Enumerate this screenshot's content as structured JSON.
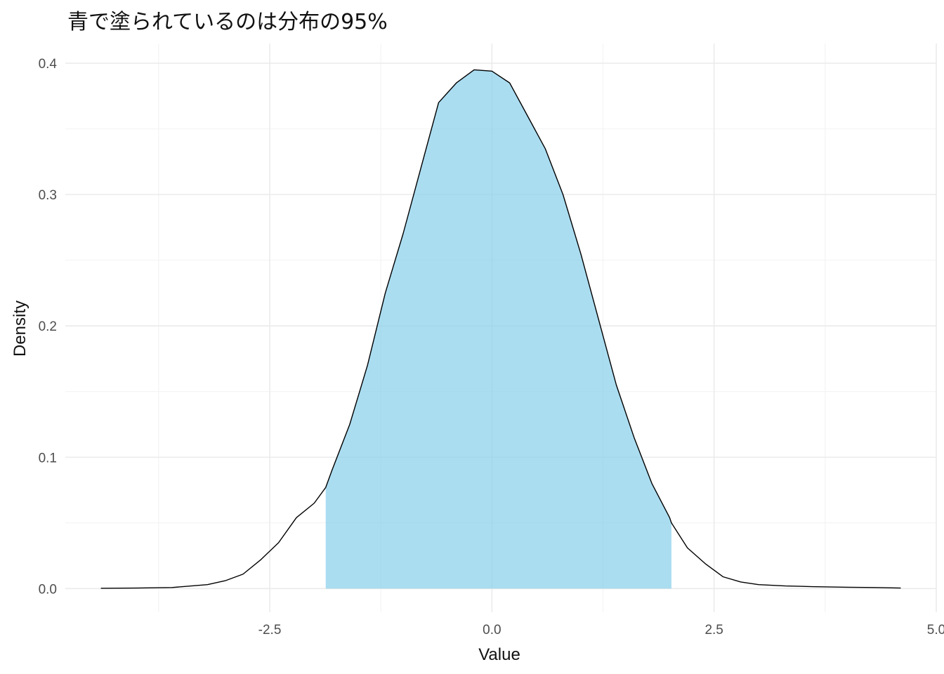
{
  "chart_data": {
    "type": "area",
    "title": "青で塗られているのは分布の95%",
    "xlabel": "Value",
    "ylabel": "Density",
    "xlim": [
      -4.8,
      5.0
    ],
    "ylim": [
      -0.018,
      0.415
    ],
    "x_ticks": [
      -2.5,
      0.0,
      2.5,
      5.0
    ],
    "x_tick_labels": [
      "-2.5",
      "0.0",
      "2.5",
      "5.0"
    ],
    "y_ticks": [
      0.0,
      0.1,
      0.2,
      0.3,
      0.4
    ],
    "y_tick_labels": [
      "0.0",
      "0.1",
      "0.2",
      "0.3",
      "0.4"
    ],
    "grid": true,
    "fill_color": "#87ceeb",
    "line_color": "#000000",
    "shaded_interval": [
      -1.87,
      2.02
    ],
    "series": [
      {
        "x": [
          -4.4,
          -4.0,
          -3.6,
          -3.2,
          -3.0,
          -2.8,
          -2.6,
          -2.4,
          -2.2,
          -2.0,
          -1.87,
          -1.8,
          -1.6,
          -1.4,
          -1.2,
          -1.0,
          -0.8,
          -0.6,
          -0.4,
          -0.2,
          0.0,
          0.2,
          0.4,
          0.6,
          0.8,
          1.0,
          1.2,
          1.4,
          1.6,
          1.8,
          2.0,
          2.02,
          2.2,
          2.4,
          2.6,
          2.8,
          3.0,
          3.3,
          3.6,
          4.0,
          4.3,
          4.6
        ],
        "y": [
          0.0002,
          0.0004,
          0.0008,
          0.003,
          0.006,
          0.011,
          0.022,
          0.035,
          0.054,
          0.065,
          0.077,
          0.09,
          0.125,
          0.17,
          0.225,
          0.27,
          0.32,
          0.37,
          0.385,
          0.395,
          0.394,
          0.385,
          0.36,
          0.335,
          0.3,
          0.255,
          0.205,
          0.155,
          0.115,
          0.08,
          0.054,
          0.05,
          0.031,
          0.019,
          0.009,
          0.005,
          0.003,
          0.002,
          0.0015,
          0.001,
          0.0008,
          0.0004
        ]
      }
    ]
  }
}
